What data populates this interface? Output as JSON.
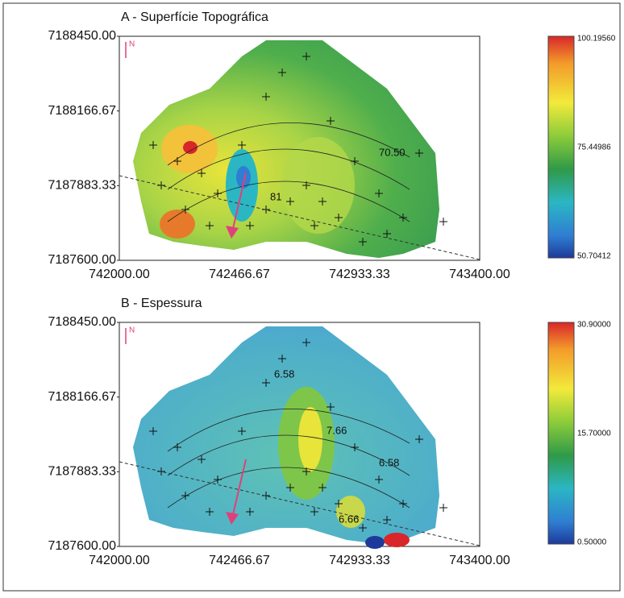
{
  "panels": [
    {
      "title": "A - Superfície Topográfica",
      "y_tick_labels": [
        "7188450.00",
        "7188166.67",
        "7187883.33",
        "7187600.00"
      ],
      "x_tick_labels": [
        "742000.00",
        "742466.67",
        "742933.33",
        "743400.00"
      ],
      "colorbar_labels": [
        "100.19560",
        "75.44986",
        "50.70412"
      ],
      "contour_labels": [
        "70.50",
        "81"
      ],
      "north": "N"
    },
    {
      "title": "B - Espessura",
      "y_tick_labels": [
        "7188450.00",
        "7188166.67",
        "7187883.33",
        "7187600.00"
      ],
      "x_tick_labels": [
        "742000.00",
        "742466.67",
        "742933.33",
        "743400.00"
      ],
      "colorbar_labels": [
        "30.90000",
        "15.70000",
        "0.50000"
      ],
      "contour_labels": [
        "6.58",
        "7.66",
        "6.58",
        "6.66"
      ],
      "north": "N"
    }
  ]
}
